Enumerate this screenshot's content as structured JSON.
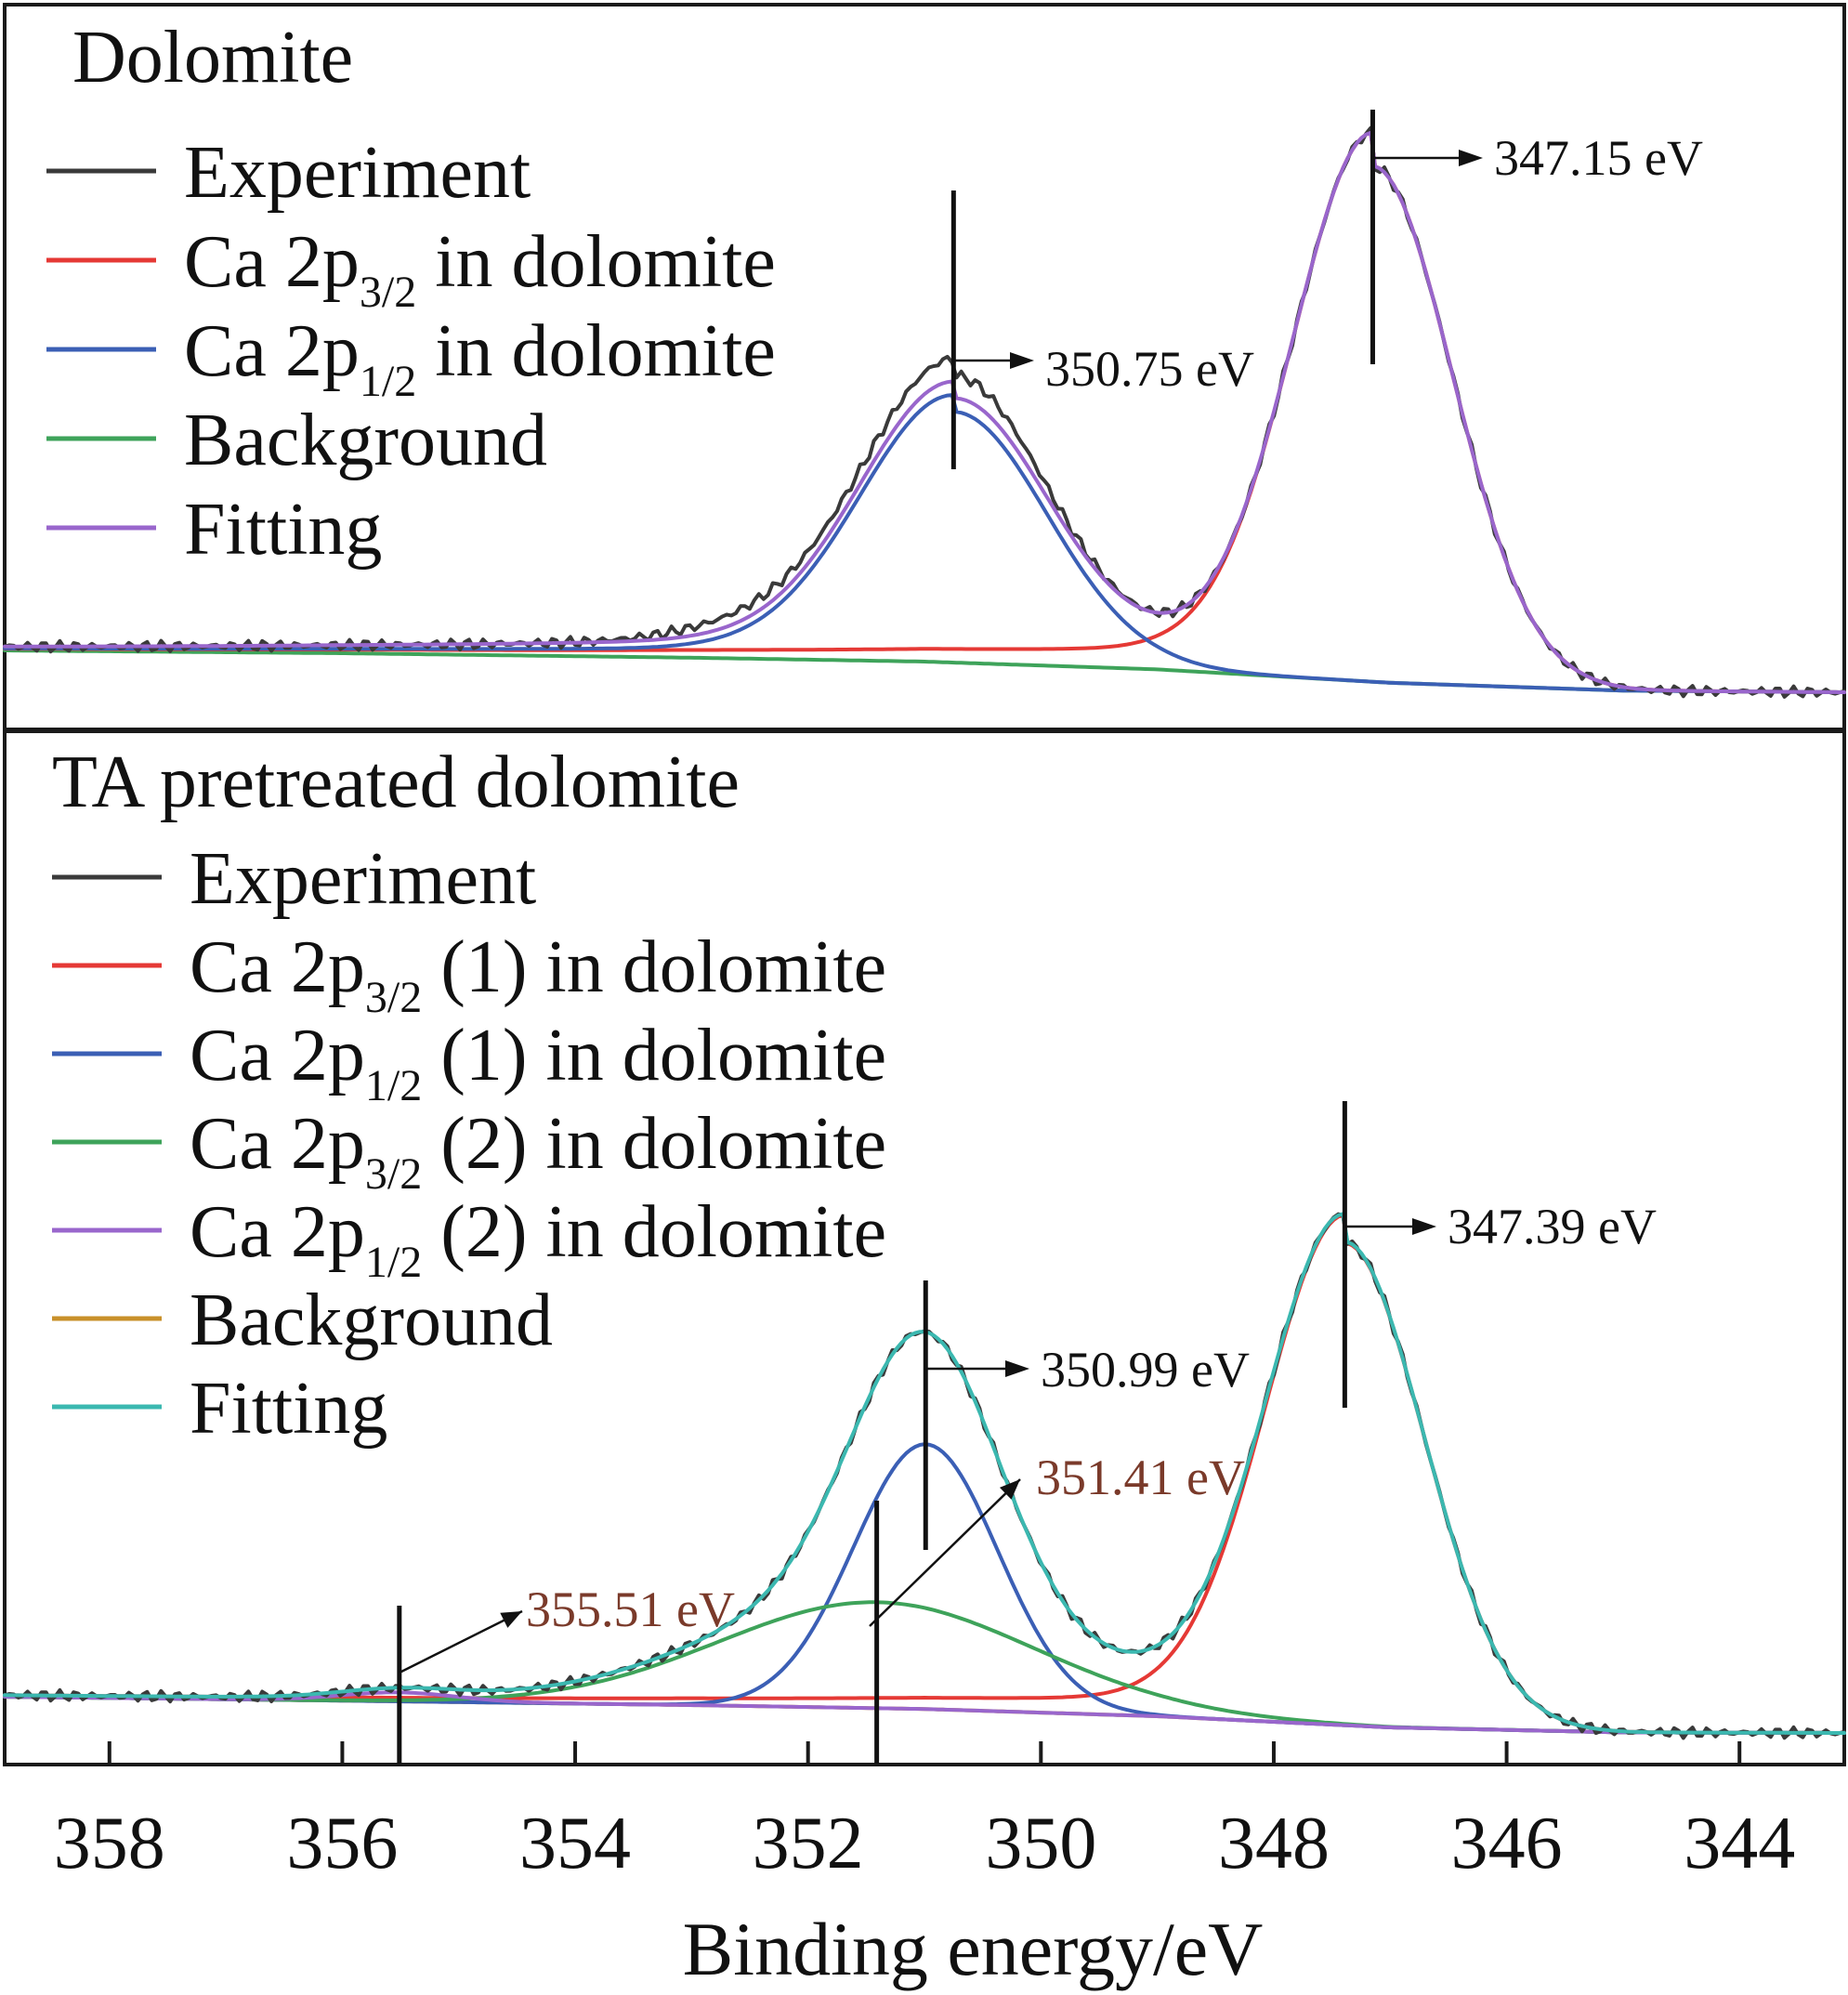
{
  "chart_data": [
    {
      "type": "line",
      "panel": "top",
      "title": "Dolomite",
      "xlabel": "",
      "ylabel": "",
      "xlim": [
        358.9,
        343.1
      ],
      "x_reversed": true,
      "ylim": [
        0,
        1
      ],
      "colors": {
        "Experiment": "#3a3a3a",
        "Ca 2p3/2 in dolomite": "#e53935",
        "Ca 2p1/2 in dolomite": "#3b5fb5",
        "Background": "#3ea35a",
        "Fitting": "#9966cc"
      },
      "legend": [
        {
          "main": "Experiment",
          "sub": "",
          "post": "",
          "series": "Experiment"
        },
        {
          "main": "Ca 2p",
          "sub": "3/2",
          "post": " in dolomite",
          "series": "Ca 2p3/2 in dolomite"
        },
        {
          "main": "Ca 2p",
          "sub": "1/2",
          "post": " in dolomite",
          "series": "Ca 2p1/2 in dolomite"
        },
        {
          "main": "Background",
          "sub": "",
          "post": "",
          "series": "Background"
        },
        {
          "main": "Fitting",
          "sub": "",
          "post": "",
          "series": "Fitting"
        }
      ],
      "background": {
        "x": [
          358.9,
          356,
          353,
          351,
          349,
          347,
          345,
          343.1
        ],
        "y": [
          0.07,
          0.065,
          0.057,
          0.05,
          0.036,
          0.012,
          -0.002,
          -0.005
        ]
      },
      "peaks": [
        {
          "series": "Ca 2p3/2 in dolomite",
          "center": 347.15,
          "height": 0.925,
          "sigma": 0.68,
          "tail": 0.06
        },
        {
          "series": "Ca 2p1/2 in dolomite",
          "center": 350.75,
          "height": 0.45,
          "sigma": 0.8,
          "tail": 0.03
        }
      ],
      "annotations": [
        {
          "text": "347.15 eV",
          "x": 347.15,
          "color": "#111111"
        },
        {
          "text": "350.75 eV",
          "x": 350.75,
          "color": "#111111"
        }
      ]
    },
    {
      "type": "line",
      "panel": "bottom",
      "title": "TA pretreated dolomite",
      "xlabel": "Binding energy/eV",
      "ylabel": "",
      "xlim": [
        358.9,
        343.1
      ],
      "x_reversed": true,
      "ylim": [
        0,
        1
      ],
      "xticks": [
        358,
        356,
        354,
        352,
        350,
        348,
        346,
        344
      ],
      "colors": {
        "Experiment": "#3a3a3a",
        "Ca 2p3/2 (1) in dolomite": "#e53935",
        "Ca 2p1/2 (1) in dolomite": "#3b5fb5",
        "Ca 2p3/2 (2) in dolomite": "#3ea35a",
        "Ca 2p1/2 (2) in dolomite": "#9966cc",
        "Background": "#c8902a",
        "Fitting": "#3bb8b0"
      },
      "legend": [
        {
          "main": "Experiment",
          "sub": "",
          "post": "",
          "series": "Experiment"
        },
        {
          "main": "Ca 2p",
          "sub": "3/2",
          "post": " (1) in dolomite",
          "series": "Ca 2p3/2 (1) in dolomite"
        },
        {
          "main": "Ca 2p",
          "sub": "1/2",
          "post": " (1) in dolomite",
          "series": "Ca 2p1/2 (1) in dolomite"
        },
        {
          "main": "Ca 2p",
          "sub": "3/2",
          "post": " (2) in dolomite",
          "series": "Ca 2p3/2 (2) in dolomite"
        },
        {
          "main": "Ca 2p",
          "sub": "1/2",
          "post": " (2) in dolomite",
          "series": "Ca 2p1/2 (2) in dolomite"
        },
        {
          "main": "Background",
          "sub": "",
          "post": "",
          "series": "Background"
        },
        {
          "main": "Fitting",
          "sub": "",
          "post": "",
          "series": "Fitting"
        }
      ],
      "background": {
        "x": [
          358.9,
          356,
          353,
          351,
          349,
          347,
          345,
          343.1
        ],
        "y": [
          0.065,
          0.058,
          0.05,
          0.043,
          0.03,
          0.01,
          0.001,
          0.0
        ]
      },
      "peaks": [
        {
          "series": "Ca 2p3/2 (1) in dolomite",
          "center": 347.39,
          "height": 0.865,
          "sigma": 0.68,
          "tail": 0.05
        },
        {
          "series": "Ca 2p1/2 (1) in dolomite",
          "center": 350.99,
          "height": 0.475,
          "sigma": 0.62,
          "tail": 0.0
        },
        {
          "series": "Ca 2p3/2 (2) in dolomite",
          "center": 351.41,
          "height": 0.19,
          "sigma": 1.35,
          "tail": 0.0
        },
        {
          "series": "Ca 2p1/2 (2) in dolomite",
          "center": 355.51,
          "height": 0.016,
          "sigma": 0.5,
          "tail": 0.0
        }
      ],
      "annotations": [
        {
          "text": "347.39 eV",
          "x": 347.39,
          "color": "#111111"
        },
        {
          "text": "350.99 eV",
          "x": 350.99,
          "color": "#111111"
        },
        {
          "text": "351.41 eV",
          "x": 351.41,
          "color": "#7a3a2a"
        },
        {
          "text": "355.51 eV",
          "x": 355.51,
          "color": "#7a3a2a"
        }
      ]
    }
  ]
}
